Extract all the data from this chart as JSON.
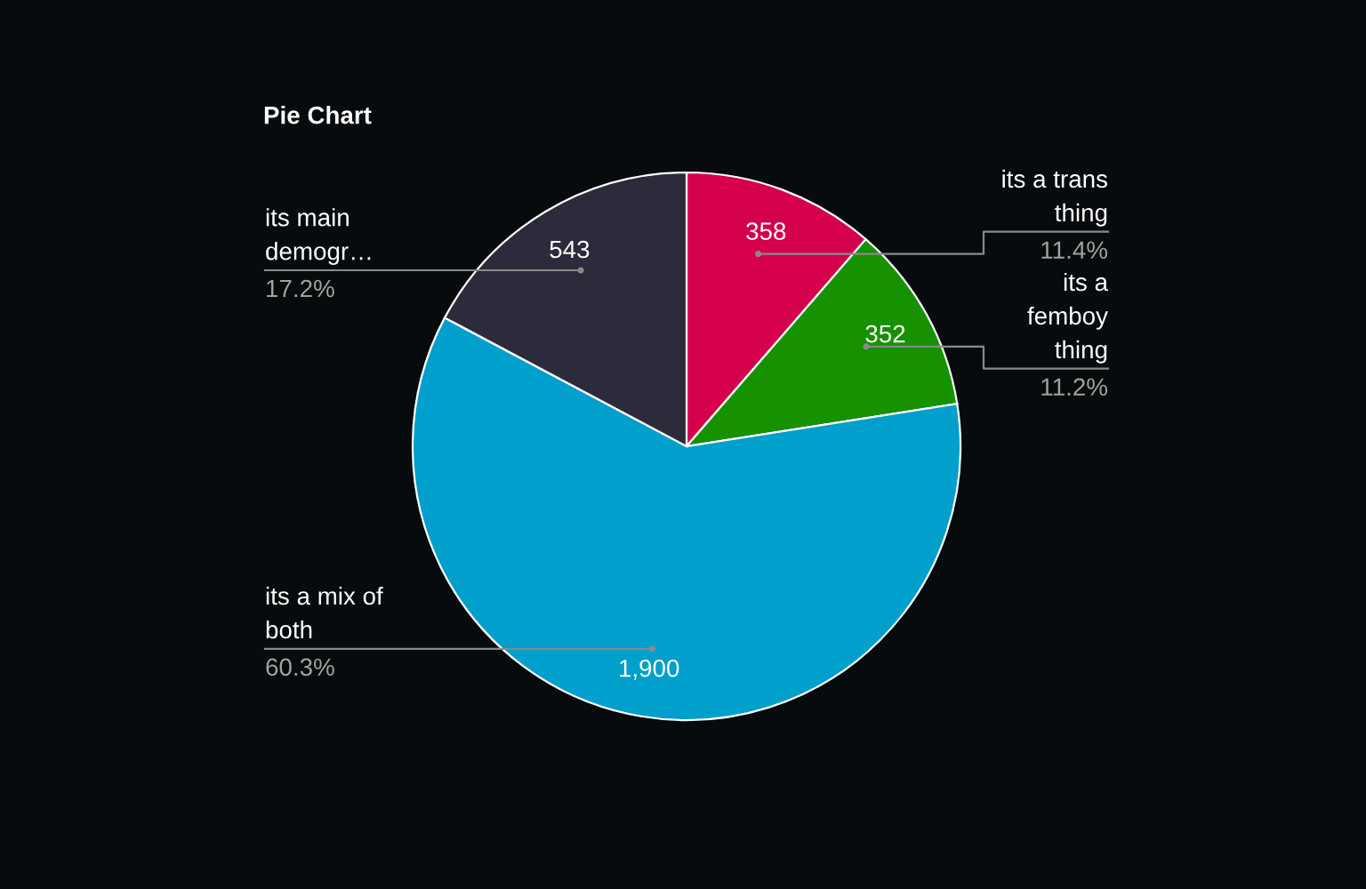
{
  "chart_data": {
    "type": "pie",
    "title": "Pie Chart",
    "categories": [
      "its a trans\nthing",
      "its a\nfemboy\nthing",
      "its a mix of\nboth",
      "its main\ndemogr…"
    ],
    "values": [
      358,
      352,
      1900,
      543
    ],
    "colors": [
      "#d5004b",
      "#169100",
      "#009fcc",
      "#2d2a3b"
    ],
    "value_labels": [
      "358",
      "352",
      "1,900",
      "543"
    ],
    "annotations": [
      "11.4%",
      "11.2%",
      "60.3%",
      "17.2%"
    ]
  }
}
